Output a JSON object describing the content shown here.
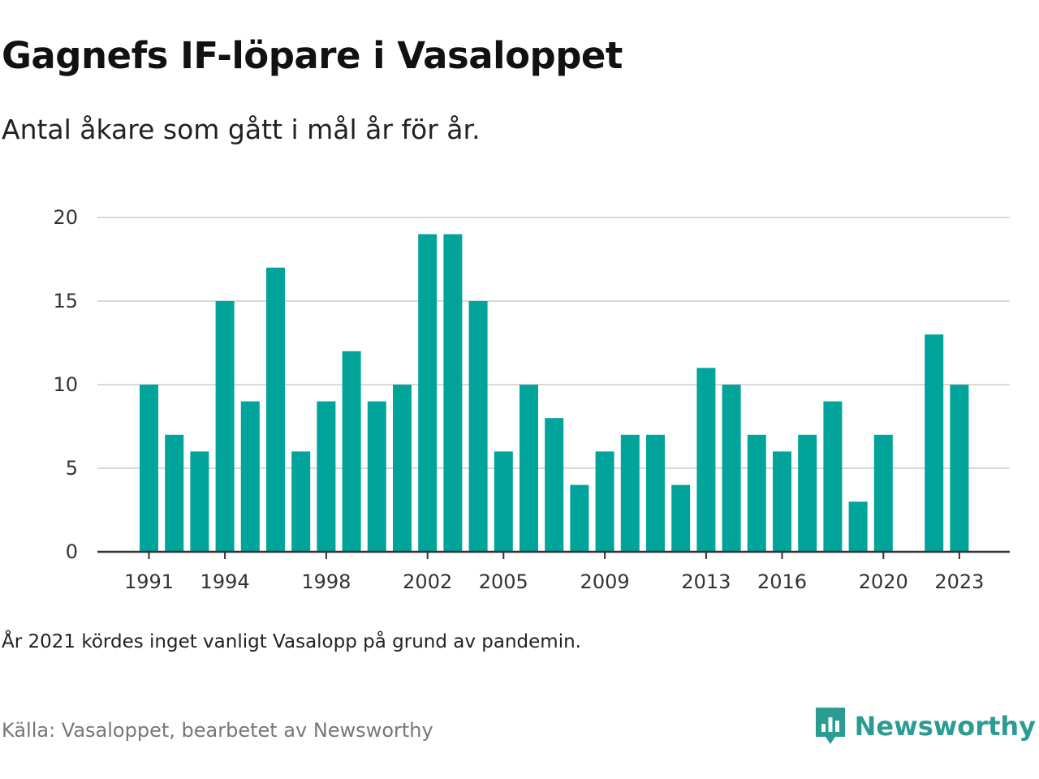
{
  "title": "Gagnefs IF-löpare i Vasaloppet",
  "subtitle": "Antal åkare som gått i mål år för år.",
  "note": "År 2021 kördes inget vanligt Vasalopp på grund av pandemin.",
  "source": "Källa: Vasaloppet, bearbetet av Newsworthy",
  "brand": {
    "name": "Newsworthy",
    "logo_icon": "newsworthy-logo-icon",
    "color": "#2a9c92"
  },
  "colors": {
    "bar": "#00a49a",
    "grid": "#d9d9d9",
    "axis": "#333333"
  },
  "chart_data": {
    "type": "bar",
    "title": "Gagnefs IF-löpare i Vasaloppet",
    "subtitle": "Antal åkare som gått i mål år för år.",
    "xlabel": "",
    "ylabel": "",
    "x": [
      1991,
      1992,
      1993,
      1994,
      1995,
      1996,
      1997,
      1998,
      1999,
      2000,
      2001,
      2002,
      2003,
      2004,
      2005,
      2006,
      2007,
      2008,
      2009,
      2010,
      2011,
      2012,
      2013,
      2014,
      2015,
      2016,
      2017,
      2018,
      2019,
      2020,
      2021,
      2022,
      2023
    ],
    "values": [
      10,
      7,
      6,
      15,
      9,
      17,
      6,
      9,
      12,
      9,
      10,
      19,
      19,
      15,
      6,
      10,
      8,
      4,
      6,
      7,
      7,
      4,
      11,
      10,
      7,
      6,
      7,
      9,
      3,
      7,
      null,
      13,
      10
    ],
    "x_ticks": [
      1991,
      1994,
      1998,
      2002,
      2005,
      2009,
      2013,
      2016,
      2020,
      2023
    ],
    "y_ticks": [
      0,
      5,
      10,
      15,
      20
    ],
    "ylim": [
      0,
      20
    ],
    "grid": true,
    "legend": "none"
  }
}
